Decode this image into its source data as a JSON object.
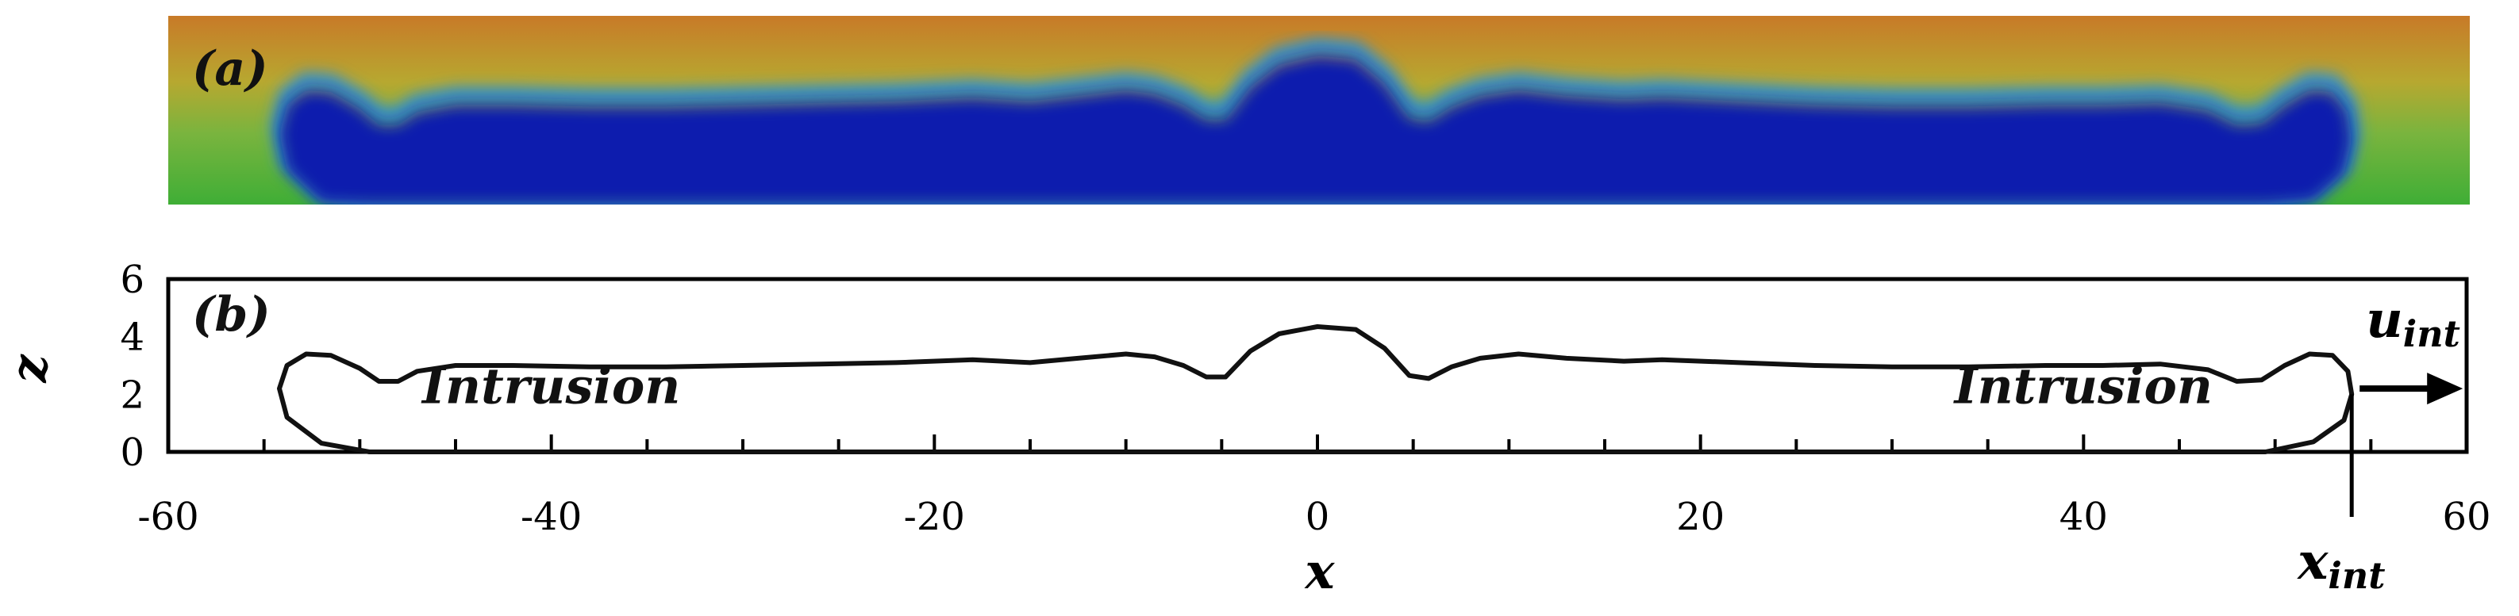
{
  "chart_data": [
    {
      "type": "heatmap",
      "panel_label": "(a)",
      "colors": {
        "top": "#c87a28",
        "upper": "#b7a830",
        "middle": "#7ab43e",
        "lower": "#3fae36",
        "intrusion": "#0a1fae",
        "front": "#2f8ecf"
      }
    },
    {
      "type": "line",
      "panel_label": "(b)",
      "xlabel": "x",
      "ylabel": "z",
      "xlim": [
        -60,
        60
      ],
      "ylim": [
        0,
        6
      ],
      "xticks": [
        -60,
        -40,
        -20,
        0,
        20,
        40,
        60
      ],
      "yticks": [
        0,
        2,
        4,
        6
      ],
      "annotations": [
        {
          "text": "Intrusion",
          "x": -40,
          "y": 2.3
        },
        {
          "text": "Intrusion",
          "x": 40,
          "y": 2.3
        }
      ],
      "front_label": {
        "symbol": "u",
        "subscript": "int"
      },
      "position_label": {
        "symbol": "x",
        "subscript": "int"
      },
      "front_position": 54,
      "interface": [
        [
          -49.5,
          0.0
        ],
        [
          -52.0,
          0.3
        ],
        [
          -53.8,
          1.2
        ],
        [
          -54.2,
          2.2
        ],
        [
          -53.8,
          3.0
        ],
        [
          -52.8,
          3.4
        ],
        [
          -51.5,
          3.35
        ],
        [
          -50.0,
          2.9
        ],
        [
          -49.0,
          2.45
        ],
        [
          -48.0,
          2.45
        ],
        [
          -47.0,
          2.8
        ],
        [
          -45.0,
          3.0
        ],
        [
          -42.0,
          3.0
        ],
        [
          -38.0,
          2.95
        ],
        [
          -34.0,
          2.95
        ],
        [
          -30.0,
          3.0
        ],
        [
          -26.0,
          3.05
        ],
        [
          -22.0,
          3.1
        ],
        [
          -18.0,
          3.2
        ],
        [
          -15.0,
          3.1
        ],
        [
          -12.5,
          3.25
        ],
        [
          -10.0,
          3.4
        ],
        [
          -8.5,
          3.3
        ],
        [
          -7.0,
          3.0
        ],
        [
          -5.8,
          2.6
        ],
        [
          -4.8,
          2.6
        ],
        [
          -3.5,
          3.5
        ],
        [
          -2.0,
          4.1
        ],
        [
          0.0,
          4.35
        ],
        [
          2.0,
          4.25
        ],
        [
          3.5,
          3.6
        ],
        [
          4.8,
          2.65
        ],
        [
          5.8,
          2.55
        ],
        [
          7.0,
          2.95
        ],
        [
          8.5,
          3.25
        ],
        [
          10.5,
          3.4
        ],
        [
          13.0,
          3.25
        ],
        [
          16.0,
          3.15
        ],
        [
          18.0,
          3.2
        ],
        [
          22.0,
          3.1
        ],
        [
          26.0,
          3.0
        ],
        [
          30.0,
          2.95
        ],
        [
          34.0,
          2.95
        ],
        [
          38.0,
          3.0
        ],
        [
          41.0,
          3.0
        ],
        [
          44.0,
          3.05
        ],
        [
          46.5,
          2.85
        ],
        [
          48.0,
          2.45
        ],
        [
          49.3,
          2.5
        ],
        [
          50.5,
          3.0
        ],
        [
          51.8,
          3.4
        ],
        [
          53.0,
          3.35
        ],
        [
          53.8,
          2.8
        ],
        [
          54.0,
          2.0
        ],
        [
          53.6,
          1.1
        ],
        [
          52.0,
          0.35
        ],
        [
          49.5,
          0.0
        ]
      ]
    }
  ]
}
